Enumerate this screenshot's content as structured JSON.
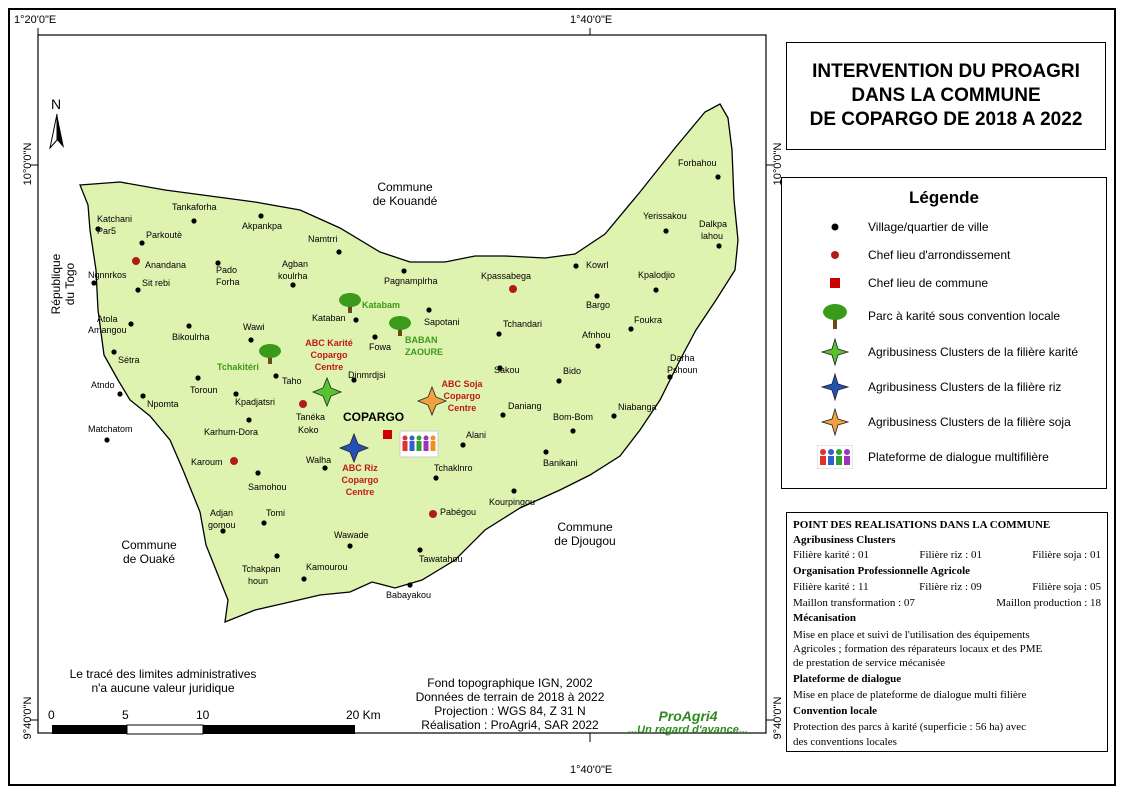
{
  "title": {
    "line1": "INTERVENTION DU PROAGRI",
    "line2": "DANS LA COMMUNE",
    "line3": "DE COPARGO DE 2018 A 2022"
  },
  "coords": {
    "top_left": "1°20'0\"E",
    "top_mid": "1°40'0\"E",
    "bottom_mid": "1°40'0\"E",
    "left_top": "10°0'0\"N",
    "left_bottom": "9°40'0\"N",
    "right_top": "10°0'0\"N",
    "right_bottom": "9°40'0\"N"
  },
  "north_label": "N",
  "colors": {
    "commune_fill": "#dff3b0",
    "village": "#000000",
    "chef_arr": "#b01c1c",
    "chef_comm": "#cc0000",
    "karite_star": "#58c232",
    "riz_star": "#2450b8",
    "soja_star": "#f0a040",
    "parc_green": "#3a9a1a"
  },
  "surroundings": {
    "kouande": [
      "Commune",
      "de Kouandé"
    ],
    "togo": [
      "République",
      "du Togo"
    ],
    "ouake": [
      "Commune",
      "de Ouaké"
    ],
    "djougou": [
      "Commune",
      "de Djougou"
    ]
  },
  "villages": [
    "Katchani",
    "Par5",
    "Tankaforha",
    "Akpankpa",
    "Parkoutè",
    "Namtrri",
    "Ngnnrkos",
    "Sit rebi",
    "Pado",
    "Forha",
    "Agban",
    "koulrha",
    "Pagnamplrha",
    "Kowrl",
    "Yerissakou",
    "Forbahou",
    "Dalkpa",
    "lahou",
    "Kpalodjio",
    "Bargo",
    "Atola",
    "Amangou",
    "Bikoulrha",
    "Wawi",
    "Kataban",
    "Sapotani",
    "Tchandari",
    "Afnhou",
    "Foukra",
    "Sétra",
    "Fowa",
    "Darha",
    "Pshoun",
    "Sakou",
    "Bido",
    "Atndo",
    "Toroun",
    "Taho",
    "Djnmrdjsi",
    "Npomta",
    "Kpadjatsri",
    "Daniang",
    "Bom-Bom",
    "Niabanga",
    "Matchatom",
    "Karhum-Dora",
    "Alani",
    "Banikani",
    "Walha",
    "Tchaklnro",
    "Samohou",
    "Kourpingou",
    "Adjan",
    "gomou",
    "Tomi",
    "Wawade",
    "Tawatahou",
    "Tchakpan",
    "houn",
    "Kamourou",
    "Babayakou"
  ],
  "chefs_arrondissement": [
    "Anandana",
    "Kpassabega",
    "Tanéka",
    "Koko",
    "Karoum",
    "Pabégou"
  ],
  "chef_commune": "COPARGO",
  "parcs": [
    "Katabam",
    "BABAN",
    "ZAOURE",
    "Tchakitéri"
  ],
  "abc": {
    "karite": [
      "ABC Karité",
      "Copargo",
      "Centre"
    ],
    "soja": [
      "ABC Soja",
      "Copargo",
      "Centre"
    ],
    "riz": [
      "ABC Riz",
      "Copargo",
      "Centre"
    ]
  },
  "legend": {
    "title": "Légende",
    "items": [
      "Village/quartier de ville",
      "Chef lieu d'arrondissement",
      "Chef lieu de commune",
      "Parc à karité sous convention locale",
      "Agribusiness Clusters de la filière karité",
      "Agribusiness Clusters de la filière riz",
      "Agribusiness Clusters de la filière soja",
      "Plateforme de dialogue multifilière"
    ]
  },
  "info": {
    "title": "POINT DES REALISATIONS DANS LA COMMUNE",
    "abc_head": "Agribusiness Clusters",
    "abc_karite": "Filière karité : 01",
    "abc_riz": "Filière riz : 01",
    "abc_soja": "Filière soja : 01",
    "opa_head": "Organisation Professionnelle Agricole",
    "opa_karite": "Filière karité : 11",
    "opa_riz": "Filière riz : 09",
    "opa_soja": "Filière soja : 05",
    "maillon_transfo": "Maillon transformation : 07",
    "maillon_prod": "Maillon production : 18",
    "meca_head": "Mécanisation",
    "meca_1": "Mise en place et suivi de l'utilisation des équipements",
    "meca_2": "Agricoles ; formation des réparateurs locaux et des PME",
    "meca_3": "de prestation de service mécanisée",
    "plat_head": "Plateforme de dialogue",
    "plat_1": "Mise en place de plateforme de dialogue multi filière",
    "conv_head": "Convention locale",
    "conv_1": "Protection des parcs à karité (superficie : 56 ha) avec",
    "conv_2": "des conventions locales"
  },
  "note": {
    "line1": "Le tracé des limites administratives",
    "line2": "n'a aucune valeur juridique"
  },
  "scale": {
    "l0": "0",
    "l5": "5",
    "l10": "10",
    "l20": "20 Km"
  },
  "sources": {
    "line1": "Fond topographique IGN, 2002",
    "line2": "Données de terrain de 2018 à 2022",
    "line3": "Projection : WGS 84, Z 31 N",
    "line4": "Réalisation : ProAgri4, SAR 2022"
  },
  "logo": {
    "name": "ProAgri4",
    "slogan": "...Un regard d'avance..."
  }
}
